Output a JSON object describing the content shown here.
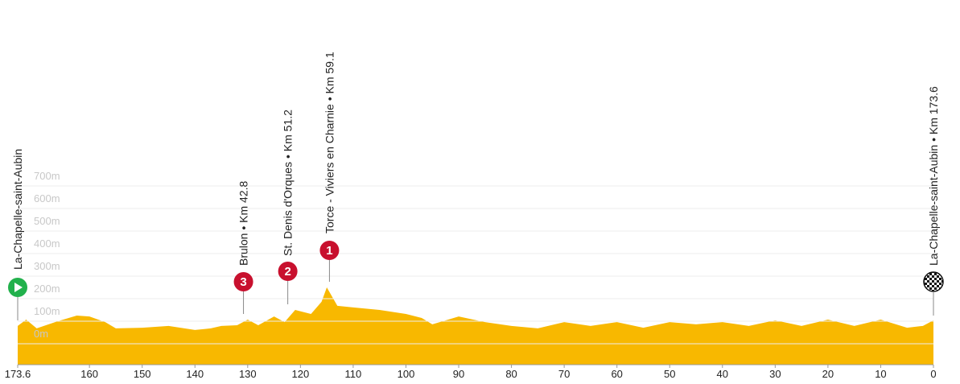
{
  "chart_data": {
    "type": "area",
    "x": [
      173.6,
      172,
      170,
      166,
      162.4,
      160,
      157,
      155,
      150,
      145,
      140,
      137,
      135,
      132,
      130,
      128,
      125,
      123,
      121,
      118,
      116,
      115,
      113,
      110,
      105,
      100,
      97,
      95,
      90,
      85,
      80,
      75,
      70,
      65,
      60,
      55,
      50,
      45,
      40,
      35,
      30,
      25,
      20,
      15,
      10,
      5,
      2,
      0
    ],
    "series": [
      {
        "color": "#f8b800",
        "values": [
          79,
          107,
          68,
          100,
          125,
          121,
          96,
          68,
          71,
          79,
          61,
          68,
          79,
          82,
          107,
          82,
          121,
          96,
          150,
          132,
          186,
          250,
          168,
          161,
          150,
          132,
          114,
          86,
          121,
          96,
          79,
          68,
          96,
          79,
          96,
          71,
          96,
          86,
          96,
          79,
          104,
          79,
          107,
          79,
          107,
          71,
          79,
          104
        ]
      }
    ],
    "xlim": [
      173.6,
      0
    ],
    "xticks": [
      173.6,
      160,
      150,
      140,
      130,
      120,
      110,
      100,
      90,
      80,
      70,
      60,
      50,
      40,
      30,
      20,
      10,
      0
    ],
    "ylim": [
      -93,
      800
    ],
    "yticks": [
      {
        "value": 0,
        "label": "0m"
      },
      {
        "value": 100,
        "label": "100m"
      },
      {
        "value": 200,
        "label": "200m"
      },
      {
        "value": 300,
        "label": "300m"
      },
      {
        "value": 400,
        "label": "400m"
      },
      {
        "value": 500,
        "label": "500m"
      },
      {
        "value": 600,
        "label": "600m"
      },
      {
        "value": 700,
        "label": "700m"
      }
    ],
    "grid": true,
    "start": {
      "label": "La-Chapelle-saint-Aubin",
      "color": "#22b14c"
    },
    "finish": {
      "label": "La-Chapelle-saint-Aubin • Km 173.6"
    },
    "climbs": [
      {
        "label": "Brulon • Km 42.8",
        "km": 42.8,
        "category": "3",
        "color": "#c8102e"
      },
      {
        "label": "St. Denis d'Orques • Km 51.2",
        "km": 51.2,
        "category": "2",
        "color": "#c8102e"
      },
      {
        "label": "Torce - Viviers en Charnie • Km 59.1",
        "km": 59.1,
        "category": "1",
        "color": "#c8102e"
      }
    ]
  }
}
